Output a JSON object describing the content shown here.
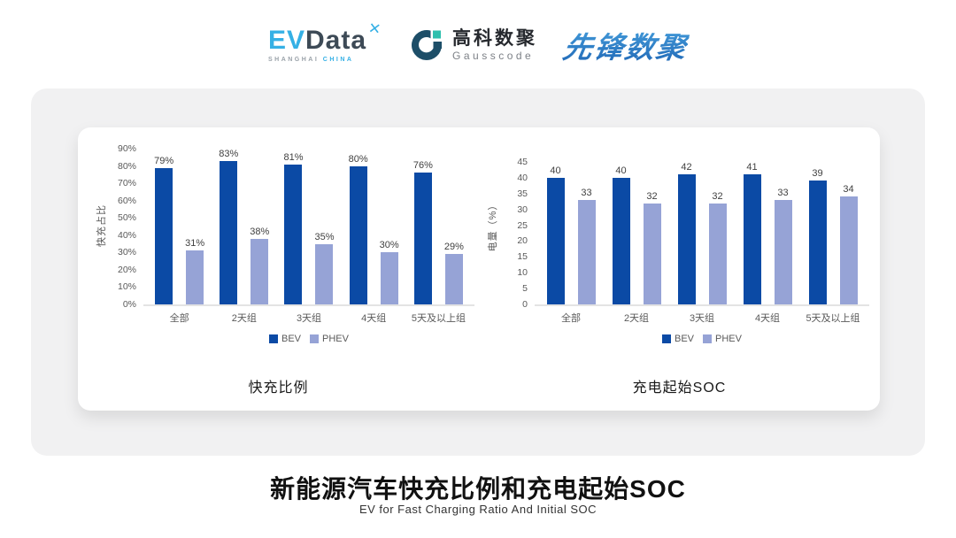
{
  "header": {
    "evdata": {
      "ev": "EV",
      "data": "Data",
      "xmark": "✕",
      "sub_left": "SHANGHAI",
      "sub_right": "CHINA"
    },
    "gausscode": {
      "cn": "高科数聚",
      "en": "Gausscode"
    },
    "xianfeng": "先锋数聚"
  },
  "panel": {
    "left_caption": "快充比例",
    "right_caption": "充电起始SOC"
  },
  "footer": {
    "title": "新能源汽车快充比例和充电起始SOC",
    "subtitle": "EV for Fast Charging Ratio And Initial SOC"
  },
  "colors": {
    "bev": "#0b4aa5",
    "phev": "#96a3d6",
    "accent_blue": "#35b0e5",
    "gausscode_navy": "#1d4e68",
    "gausscode_teal": "#2fbfae",
    "xianfeng_blue": "#2e7cc9"
  },
  "chart_data": [
    {
      "type": "bar",
      "title": "快充比例",
      "categories": [
        "全部",
        "2天组",
        "3天组",
        "4天组",
        "5天及以上组"
      ],
      "series": [
        {
          "name": "BEV",
          "color": "#0b4aa5",
          "values": [
            79,
            83,
            81,
            80,
            76
          ]
        },
        {
          "name": "PHEV",
          "color": "#96a3d6",
          "values": [
            31,
            38,
            35,
            30,
            29
          ]
        }
      ],
      "xlabel": "",
      "ylabel": "快充占比",
      "ylim": [
        0,
        90
      ],
      "ytick_step": 10,
      "tick_suffix": "%",
      "label_suffix": "%",
      "grid": false,
      "legend_position": "bottom"
    },
    {
      "type": "bar",
      "title": "充电起始SOC",
      "categories": [
        "全部",
        "2天组",
        "3天组",
        "4天组",
        "5天及以上组"
      ],
      "series": [
        {
          "name": "BEV",
          "color": "#0b4aa5",
          "values": [
            40,
            40,
            42,
            41,
            39
          ]
        },
        {
          "name": "PHEV",
          "color": "#96a3d6",
          "values": [
            33,
            32,
            32,
            33,
            34
          ]
        }
      ],
      "xlabel": "",
      "ylabel": "电量（%）",
      "ylim": [
        0,
        45
      ],
      "ytick_step": 5,
      "tick_suffix": "",
      "label_suffix": "",
      "grid": false,
      "legend_position": "bottom"
    }
  ]
}
